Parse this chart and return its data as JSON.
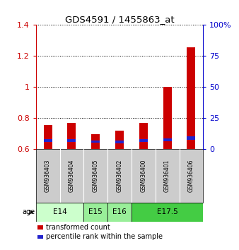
{
  "title": "GDS4591 / 1455863_at",
  "samples": [
    "GSM936403",
    "GSM936404",
    "GSM936405",
    "GSM936402",
    "GSM936400",
    "GSM936401",
    "GSM936406"
  ],
  "transformed_count": [
    0.755,
    0.77,
    0.695,
    0.72,
    0.77,
    1.0,
    1.255
  ],
  "blue_segment_bottom": [
    0.648,
    0.648,
    0.64,
    0.638,
    0.648,
    0.65,
    0.66
  ],
  "blue_segment_height": [
    0.018,
    0.018,
    0.016,
    0.016,
    0.018,
    0.018,
    0.022
  ],
  "ylim": [
    0.6,
    1.4
  ],
  "y2lim": [
    0,
    100
  ],
  "y_ticks": [
    0.6,
    0.8,
    1.0,
    1.2,
    1.4
  ],
  "y2_ticks": [
    0,
    25,
    50,
    75,
    100
  ],
  "y_tick_labels": [
    "0.6",
    "0.8",
    "1",
    "1.2",
    "1.4"
  ],
  "y2_tick_labels": [
    "0",
    "25",
    "50",
    "75",
    "100%"
  ],
  "ytick_color": "#cc0000",
  "y2tick_color": "#0000cc",
  "bar_color": "#cc0000",
  "blue_color": "#2222cc",
  "bar_bottom": 0.6,
  "age_groups": [
    {
      "label": "E14",
      "start": 0,
      "end": 2,
      "color": "#ccffcc"
    },
    {
      "label": "E15",
      "start": 2,
      "end": 3,
      "color": "#99ee99"
    },
    {
      "label": "E16",
      "start": 3,
      "end": 4,
      "color": "#99ee99"
    },
    {
      "label": "E17.5",
      "start": 4,
      "end": 7,
      "color": "#44cc44"
    }
  ],
  "legend_items": [
    {
      "color": "#cc0000",
      "label": "transformed count"
    },
    {
      "color": "#2222cc",
      "label": "percentile rank within the sample"
    }
  ],
  "grid_color": "#000000",
  "bar_width": 0.35,
  "sample_area_color": "#cccccc",
  "background_color": "#ffffff",
  "age_label": "age"
}
